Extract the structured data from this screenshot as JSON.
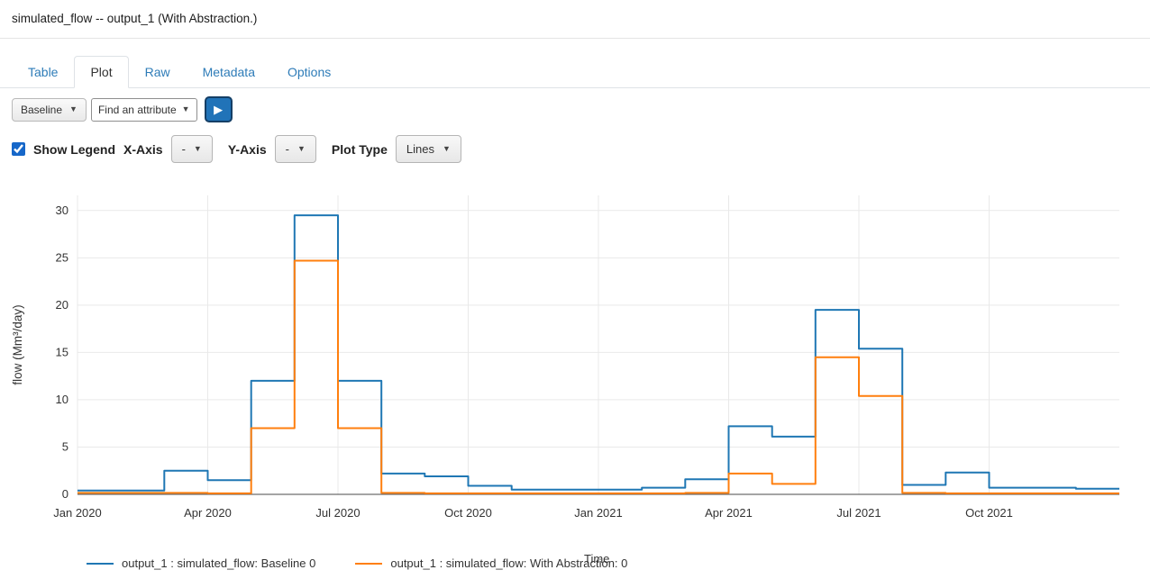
{
  "header": {
    "title": "simulated_flow -- output_1 (With Abstraction.)"
  },
  "tabs": {
    "items": [
      {
        "label": "Table",
        "active": false
      },
      {
        "label": "Plot",
        "active": true
      },
      {
        "label": "Raw",
        "active": false
      },
      {
        "label": "Metadata",
        "active": false
      },
      {
        "label": "Options",
        "active": false
      }
    ]
  },
  "toolbar": {
    "scenario_dropdown": "Baseline",
    "attribute_select": "Find an attribute",
    "play_glyph": "▶"
  },
  "plot_controls": {
    "show_legend_label": "Show Legend",
    "show_legend_checked": true,
    "x_axis_label": "X-Axis",
    "x_axis_value": "-",
    "y_axis_label": "Y-Axis",
    "y_axis_value": "-",
    "plot_type_label": "Plot Type",
    "plot_type_value": "Lines"
  },
  "chart_data": {
    "type": "line",
    "step": "post",
    "title": "",
    "xlabel": "Time",
    "ylabel": "flow (Mm³/day)",
    "ylim": [
      0,
      31.6
    ],
    "yticks": [
      0,
      5,
      10,
      15,
      20,
      25,
      30
    ],
    "grid": true,
    "legend_position": "bottom",
    "months": 24,
    "x_tick_labels": [
      "Jan 2020",
      "Apr 2020",
      "Jul 2020",
      "Oct 2020",
      "Jan 2021",
      "Apr 2021",
      "Jul 2021",
      "Oct 2021"
    ],
    "x_tick_positions": [
      0,
      3,
      6,
      9,
      12,
      15,
      18,
      21
    ],
    "series": [
      {
        "name": "output_1 : simulated_flow: Baseline 0",
        "color": "#1f77b4",
        "values": [
          0.4,
          0.4,
          2.5,
          1.5,
          12.0,
          29.5,
          12.0,
          2.2,
          1.9,
          0.9,
          0.5,
          0.5,
          0.5,
          0.7,
          1.6,
          7.2,
          6.1,
          19.5,
          15.4,
          1.0,
          2.3,
          0.7,
          0.7,
          0.6
        ]
      },
      {
        "name": "output_1 : simulated_flow: With Abstraction: 0",
        "color": "#ff7f0e",
        "values": [
          0.15,
          0.15,
          0.15,
          0.1,
          7.0,
          24.7,
          7.0,
          0.15,
          0.1,
          0.1,
          0.1,
          0.1,
          0.1,
          0.1,
          0.15,
          2.2,
          1.1,
          14.5,
          10.4,
          0.15,
          0.1,
          0.1,
          0.1,
          0.1
        ]
      }
    ]
  }
}
